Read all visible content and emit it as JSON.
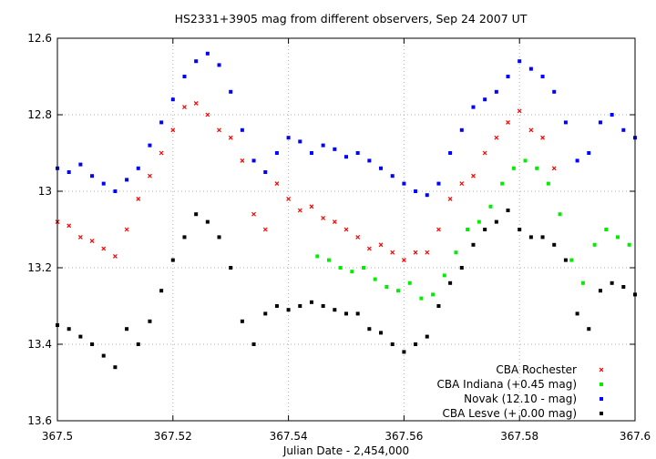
{
  "chart_data": {
    "type": "scatter",
    "title": "HS2331+3905 mag from different observers, Sep 24 2007 UT",
    "xlabel": "Julian Date - 2,454,000",
    "ylabel": "",
    "xlim": [
      367.5,
      367.6
    ],
    "ylim": [
      12.6,
      13.6
    ],
    "y_inverted": true,
    "grid": true,
    "legend_position": "bottom-right",
    "x_ticks": [
      "367.5",
      "367.52",
      "367.54",
      "367.56",
      "367.58",
      "367.6"
    ],
    "x_tick_values": [
      367.5,
      367.52,
      367.54,
      367.56,
      367.58,
      367.6
    ],
    "y_ticks": [
      "12.6",
      "12.8",
      "13",
      "13.2",
      "13.4",
      "13.6"
    ],
    "y_tick_values": [
      12.6,
      12.8,
      13.0,
      13.2,
      13.4,
      13.6
    ],
    "series": [
      {
        "name": "CBA Rochester",
        "color": "#ff0000",
        "marker": "x",
        "x": [
          367.5,
          367.502,
          367.504,
          367.506,
          367.508,
          367.51,
          367.512,
          367.514,
          367.516,
          367.518,
          367.52,
          367.522,
          367.524,
          367.526,
          367.528,
          367.53,
          367.532,
          367.534,
          367.536,
          367.538,
          367.54,
          367.542,
          367.544,
          367.546,
          367.548,
          367.55,
          367.552,
          367.554,
          367.556,
          367.558,
          367.56,
          367.562,
          367.564,
          367.566,
          367.568,
          367.57,
          367.572,
          367.574,
          367.576,
          367.578,
          367.58,
          367.582,
          367.584,
          367.586
        ],
        "values": [
          13.08,
          13.09,
          13.12,
          13.13,
          13.15,
          13.17,
          13.1,
          13.02,
          12.96,
          12.9,
          12.84,
          12.78,
          12.77,
          12.8,
          12.84,
          12.86,
          12.92,
          13.06,
          13.1,
          12.98,
          13.02,
          13.05,
          13.04,
          13.07,
          13.08,
          13.1,
          13.12,
          13.15,
          13.14,
          13.16,
          13.18,
          13.16,
          13.16,
          13.1,
          13.02,
          12.98,
          12.96,
          12.9,
          12.86,
          12.82,
          12.79,
          12.84,
          12.86,
          12.94
        ]
      },
      {
        "name": "CBA Indiana (+0.45 mag)",
        "color": "#00ee00",
        "marker": "square",
        "x": [
          367.545,
          367.547,
          367.549,
          367.551,
          367.553,
          367.555,
          367.557,
          367.559,
          367.561,
          367.563,
          367.565,
          367.567,
          367.569,
          367.571,
          367.573,
          367.575,
          367.577,
          367.579,
          367.581,
          367.583,
          367.585,
          367.587,
          367.589,
          367.591,
          367.593,
          367.595,
          367.597,
          367.599
        ],
        "values": [
          13.17,
          13.18,
          13.2,
          13.21,
          13.2,
          13.23,
          13.25,
          13.26,
          13.24,
          13.28,
          13.27,
          13.22,
          13.16,
          13.1,
          13.08,
          13.04,
          12.98,
          12.94,
          12.92,
          12.94,
          12.98,
          13.06,
          13.18,
          13.24,
          13.14,
          13.1,
          13.12,
          13.14
        ]
      },
      {
        "name": "Novak (12.10 - mag)",
        "color": "#0000ff",
        "marker": "square",
        "x": [
          367.5,
          367.502,
          367.504,
          367.506,
          367.508,
          367.51,
          367.512,
          367.514,
          367.516,
          367.518,
          367.52,
          367.522,
          367.524,
          367.526,
          367.528,
          367.53,
          367.532,
          367.534,
          367.536,
          367.538,
          367.54,
          367.542,
          367.544,
          367.546,
          367.548,
          367.55,
          367.552,
          367.554,
          367.556,
          367.558,
          367.56,
          367.562,
          367.564,
          367.566,
          367.568,
          367.57,
          367.572,
          367.574,
          367.576,
          367.578,
          367.58,
          367.582,
          367.584,
          367.586,
          367.588,
          367.59,
          367.592,
          367.594,
          367.596,
          367.598,
          367.6
        ],
        "values": [
          12.94,
          12.95,
          12.93,
          12.96,
          12.98,
          13.0,
          12.97,
          12.94,
          12.88,
          12.82,
          12.76,
          12.7,
          12.66,
          12.64,
          12.67,
          12.74,
          12.84,
          12.92,
          12.95,
          12.9,
          12.86,
          12.87,
          12.9,
          12.88,
          12.89,
          12.91,
          12.9,
          12.92,
          12.94,
          12.96,
          12.98,
          13.0,
          13.01,
          12.98,
          12.9,
          12.84,
          12.78,
          12.76,
          12.74,
          12.7,
          12.66,
          12.68,
          12.7,
          12.74,
          12.82,
          12.92,
          12.9,
          12.82,
          12.8,
          12.84,
          12.86
        ]
      },
      {
        "name": "CBA Lesve (+ 0.00 mag)",
        "color": "#000000",
        "marker": "square",
        "x": [
          367.5,
          367.502,
          367.504,
          367.506,
          367.508,
          367.51,
          367.512,
          367.514,
          367.516,
          367.518,
          367.52,
          367.522,
          367.524,
          367.526,
          367.528,
          367.53,
          367.532,
          367.534,
          367.536,
          367.538,
          367.54,
          367.542,
          367.544,
          367.546,
          367.548,
          367.55,
          367.552,
          367.554,
          367.556,
          367.558,
          367.56,
          367.562,
          367.564,
          367.566,
          367.568,
          367.57,
          367.572,
          367.574,
          367.576,
          367.578,
          367.58,
          367.582,
          367.584,
          367.586,
          367.588,
          367.59,
          367.592,
          367.594,
          367.596,
          367.598,
          367.6
        ],
        "values": [
          13.35,
          13.36,
          13.38,
          13.4,
          13.43,
          13.46,
          13.36,
          13.4,
          13.34,
          13.26,
          13.18,
          13.12,
          13.06,
          13.08,
          13.12,
          13.2,
          13.34,
          13.4,
          13.32,
          13.3,
          13.31,
          13.3,
          13.29,
          13.3,
          13.31,
          13.32,
          13.32,
          13.36,
          13.37,
          13.4,
          13.42,
          13.4,
          13.38,
          13.3,
          13.24,
          13.2,
          13.14,
          13.1,
          13.08,
          13.05,
          13.1,
          13.12,
          13.12,
          13.14,
          13.18,
          13.32,
          13.36,
          13.26,
          13.24,
          13.25,
          13.27
        ]
      }
    ]
  }
}
